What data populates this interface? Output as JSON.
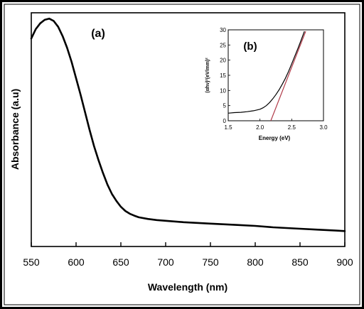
{
  "chart_data": [
    {
      "panel_label": "(a)",
      "type": "line",
      "xlabel": "Wavelength (nm)",
      "ylabel": "Absorbance (a.u)",
      "xlim": [
        550,
        900
      ],
      "ylim": [
        0,
        1.0
      ],
      "x_ticks": [
        "550",
        "600",
        "650",
        "700",
        "750",
        "800",
        "850",
        "900"
      ],
      "y_ticks": [],
      "grid": false,
      "series": [
        {
          "x": [
            550,
            555,
            560,
            565,
            570,
            575,
            580,
            585,
            590,
            595,
            600,
            605,
            610,
            615,
            620,
            625,
            630,
            635,
            640,
            645,
            650,
            655,
            660,
            665,
            670,
            680,
            690,
            700,
            720,
            750,
            780,
            800,
            820,
            850,
            870,
            890,
            900
          ],
          "y": [
            0.89,
            0.93,
            0.955,
            0.97,
            0.975,
            0.965,
            0.94,
            0.9,
            0.85,
            0.79,
            0.72,
            0.65,
            0.575,
            0.5,
            0.43,
            0.37,
            0.315,
            0.265,
            0.225,
            0.195,
            0.17,
            0.152,
            0.14,
            0.132,
            0.125,
            0.118,
            0.113,
            0.11,
            0.104,
            0.098,
            0.092,
            0.088,
            0.082,
            0.076,
            0.072,
            0.068,
            0.066
          ]
        }
      ]
    },
    {
      "panel_label": "(b)",
      "type": "line",
      "xlabel": "Energy (eV)",
      "ylabel": "(αhν)²(eV/mm)²",
      "xlim": [
        1.5,
        3.0
      ],
      "ylim": [
        0,
        30
      ],
      "x_ticks": [
        "1.5",
        "2.0",
        "2.5",
        "3.0"
      ],
      "y_ticks": [
        "0",
        "5",
        "10",
        "15",
        "20",
        "25",
        "30"
      ],
      "grid": false,
      "series": [
        {
          "x": [
            1.5,
            1.6,
            1.7,
            1.8,
            1.9,
            2.0,
            2.05,
            2.1,
            2.15,
            2.2,
            2.25,
            2.3,
            2.35,
            2.4,
            2.45,
            2.5,
            2.55,
            2.6,
            2.65,
            2.7
          ],
          "y": [
            2.5,
            2.7,
            2.8,
            3.0,
            3.3,
            3.8,
            4.3,
            5.0,
            6.0,
            7.2,
            8.6,
            10.2,
            12.0,
            14.0,
            16.3,
            18.8,
            21.4,
            24.0,
            26.7,
            29.5
          ]
        },
        {
          "color": "#b03a48",
          "x": [
            2.17,
            2.72
          ],
          "y": [
            0,
            29.5
          ]
        }
      ]
    }
  ]
}
